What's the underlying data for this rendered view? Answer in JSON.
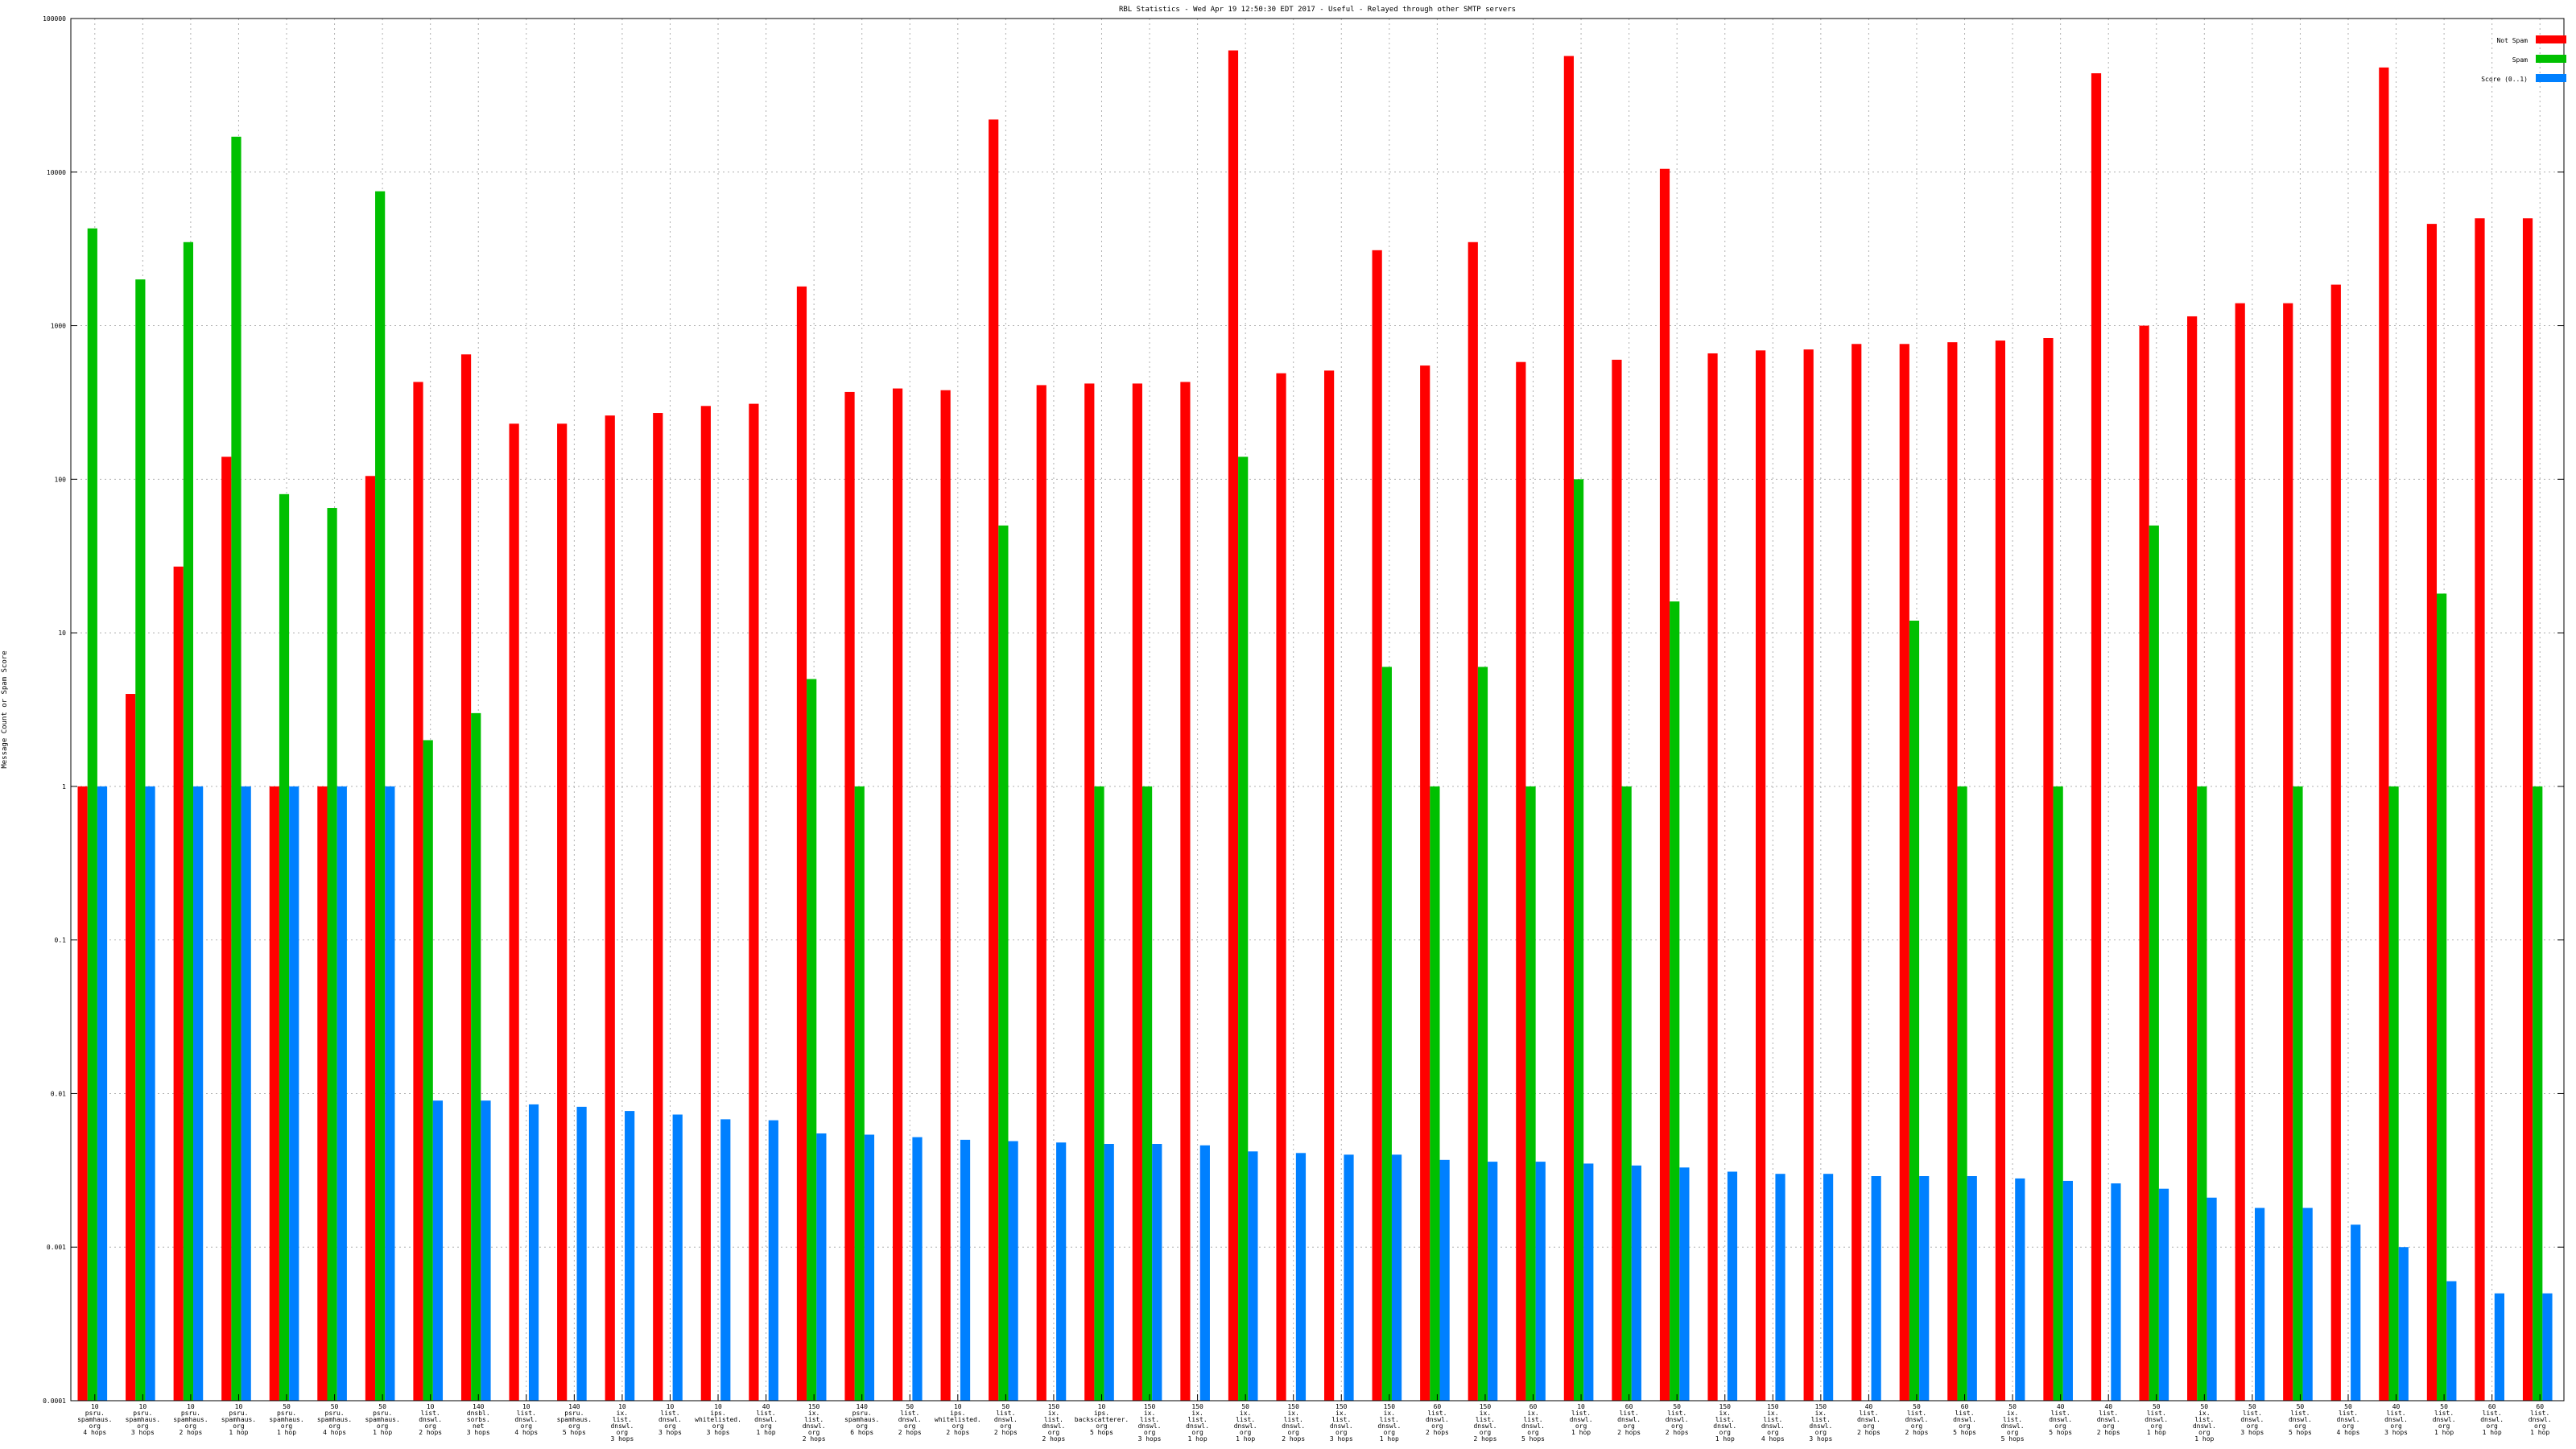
{
  "chart_data": {
    "type": "bar",
    "title": "RBL Statistics - Wed Apr 19 12:50:30 EDT 2017 - Useful - Relayed through other SMTP servers",
    "ylabel": "Message Count or Spam Score",
    "xlabel": "",
    "yscale": "log",
    "ylim": [
      0.0001,
      100000
    ],
    "yticks": [
      "0.0001",
      "0.001",
      "0.01",
      "0.1",
      "1",
      "10",
      "100",
      "1000",
      "10000",
      "100000"
    ],
    "grid": true,
    "legend_position": "top-right",
    "categories": [
      [
        "10",
        "psru.",
        "spamhaus.",
        "org",
        "4 hops"
      ],
      [
        "10",
        "psru.",
        "spamhaus.",
        "org",
        "3 hops"
      ],
      [
        "10",
        "psru.",
        "spamhaus.",
        "org",
        "2 hops"
      ],
      [
        "10",
        "psru.",
        "spamhaus.",
        "org",
        "1 hop"
      ],
      [
        "50",
        "psru.",
        "spamhaus.",
        "org",
        "1 hop"
      ],
      [
        "50",
        "psru.",
        "spamhaus.",
        "org",
        "4 hops"
      ],
      [
        "50",
        "psru.",
        "spamhaus.",
        "org",
        "1 hop"
      ],
      [
        "10",
        "list.",
        "dnswl.",
        "org",
        "2 hops"
      ],
      [
        "140",
        "dnsbl.",
        "sorbs.",
        "net",
        "3 hops"
      ],
      [
        "10",
        "list.",
        "dnswl.",
        "org",
        "4 hops"
      ],
      [
        "140",
        "psru.",
        "spamhaus.",
        "org",
        "5 hops"
      ],
      [
        "10",
        "ix.",
        "list.",
        "dnswl.",
        "org",
        "3 hops"
      ],
      [
        "10",
        "list.",
        "dnswl.",
        "org",
        "3 hops"
      ],
      [
        "10",
        "ips.",
        "whitelisted.",
        "org",
        "3 hops"
      ],
      [
        "40",
        "list.",
        "dnswl.",
        "org",
        "1 hop"
      ],
      [
        "150",
        "ix.",
        "list.",
        "dnswl.",
        "org",
        "2 hops"
      ],
      [
        "140",
        "psru.",
        "spamhaus.",
        "org",
        "6 hops"
      ],
      [
        "50",
        "list.",
        "dnswl.",
        "org",
        "2 hops"
      ],
      [
        "10",
        "ips.",
        "whitelisted.",
        "org",
        "2 hops"
      ],
      [
        "50",
        "list.",
        "dnswl.",
        "org",
        "2 hops"
      ],
      [
        "150",
        "ix.",
        "list.",
        "dnswl.",
        "org",
        "2 hops"
      ],
      [
        "10",
        "ips.",
        "backscatterer.",
        "org",
        "5 hops"
      ],
      [
        "150",
        "ix.",
        "list.",
        "dnswl.",
        "org",
        "3 hops"
      ],
      [
        "150",
        "ix.",
        "list.",
        "dnswl.",
        "org",
        "1 hop"
      ],
      [
        "50",
        "ix.",
        "list.",
        "dnswl.",
        "org",
        "1 hop"
      ],
      [
        "150",
        "ix.",
        "list.",
        "dnswl.",
        "org",
        "2 hops"
      ],
      [
        "150",
        "ix.",
        "list.",
        "dnswl.",
        "org",
        "3 hops"
      ],
      [
        "150",
        "ix.",
        "list.",
        "dnswl.",
        "org",
        "1 hop"
      ],
      [
        "60",
        "list.",
        "dnswl.",
        "org",
        "2 hops"
      ],
      [
        "150",
        "ix.",
        "list.",
        "dnswl.",
        "org",
        "2 hops"
      ],
      [
        "60",
        "ix.",
        "list.",
        "dnswl.",
        "org",
        "5 hops"
      ],
      [
        "10",
        "list.",
        "dnswl.",
        "org",
        "1 hop"
      ],
      [
        "60",
        "list.",
        "dnswl.",
        "org",
        "2 hops"
      ],
      [
        "50",
        "list.",
        "dnswl.",
        "org",
        "2 hops"
      ],
      [
        "150",
        "ix.",
        "list.",
        "dnswl.",
        "org",
        "1 hop"
      ],
      [
        "150",
        "ix.",
        "list.",
        "dnswl.",
        "org",
        "4 hops"
      ],
      [
        "150",
        "ix.",
        "list.",
        "dnswl.",
        "org",
        "3 hops"
      ],
      [
        "40",
        "list.",
        "dnswl.",
        "org",
        "2 hops"
      ],
      [
        "50",
        "list.",
        "dnswl.",
        "org",
        "2 hops"
      ],
      [
        "60",
        "list.",
        "dnswl.",
        "org",
        "5 hops"
      ],
      [
        "50",
        "ix.",
        "list.",
        "dnswl.",
        "org",
        "5 hops"
      ],
      [
        "40",
        "list.",
        "dnswl.",
        "org",
        "5 hops"
      ],
      [
        "40",
        "list.",
        "dnswl.",
        "org",
        "2 hops"
      ],
      [
        "50",
        "list.",
        "dnswl.",
        "org",
        "1 hop"
      ],
      [
        "50",
        "ix.",
        "list.",
        "dnswl.",
        "org",
        "1 hop"
      ],
      [
        "50",
        "list.",
        "dnswl.",
        "org",
        "3 hops"
      ],
      [
        "50",
        "list.",
        "dnswl.",
        "org",
        "5 hops"
      ],
      [
        "50",
        "list.",
        "dnswl.",
        "org",
        "4 hops"
      ],
      [
        "40",
        "list.",
        "dnswl.",
        "org",
        "3 hops"
      ],
      [
        "50",
        "list.",
        "dnswl.",
        "org",
        "1 hop"
      ],
      [
        "60",
        "list.",
        "dnswl.",
        "org",
        "1 hop"
      ],
      [
        "60",
        "list.",
        "dnswl.",
        "org",
        "1 hop"
      ]
    ],
    "series": [
      {
        "name": "Not Spam",
        "color": "#ff0000",
        "values": [
          1,
          4,
          27,
          140,
          1,
          1,
          105,
          430,
          650,
          230,
          230,
          260,
          270,
          300,
          310,
          1800,
          370,
          390,
          380,
          22000,
          410,
          420,
          420,
          430,
          62000,
          490,
          510,
          3100,
          550,
          3500,
          580,
          57000,
          600,
          10500,
          660,
          690,
          700,
          760,
          760,
          780,
          800,
          830,
          44000,
          1000,
          1150,
          1400,
          1400,
          1850,
          48000,
          4600,
          5000,
          5000
        ]
      },
      {
        "name": "Spam",
        "color": "#00c000",
        "values": [
          4300,
          2000,
          3500,
          17000,
          80,
          65,
          7500,
          2,
          3,
          null,
          null,
          null,
          null,
          null,
          null,
          5,
          1,
          null,
          null,
          50,
          null,
          1,
          1,
          null,
          140,
          null,
          null,
          6,
          1,
          6,
          1,
          100,
          1,
          16,
          null,
          null,
          null,
          null,
          12,
          1,
          null,
          1,
          null,
          50,
          1,
          null,
          1,
          null,
          1,
          18,
          null,
          1
        ]
      },
      {
        "name": "Score (0..1)",
        "color": "#0080ff",
        "values": [
          1,
          1,
          1,
          1,
          1,
          1,
          1,
          0.009,
          0.009,
          0.0085,
          0.0082,
          0.0077,
          0.0073,
          0.0068,
          0.0067,
          0.0055,
          0.0054,
          0.0052,
          0.005,
          0.0049,
          0.0048,
          0.0047,
          0.0047,
          0.0046,
          0.0042,
          0.0041,
          0.004,
          0.004,
          0.0037,
          0.0036,
          0.0036,
          0.0035,
          0.0034,
          0.0033,
          0.0031,
          0.003,
          0.003,
          0.0029,
          0.0029,
          0.0029,
          0.0028,
          0.0027,
          0.0026,
          0.0024,
          0.0021,
          0.0018,
          0.0018,
          0.0014,
          0.001,
          0.0006,
          0.0005,
          0.0005
        ]
      }
    ]
  }
}
